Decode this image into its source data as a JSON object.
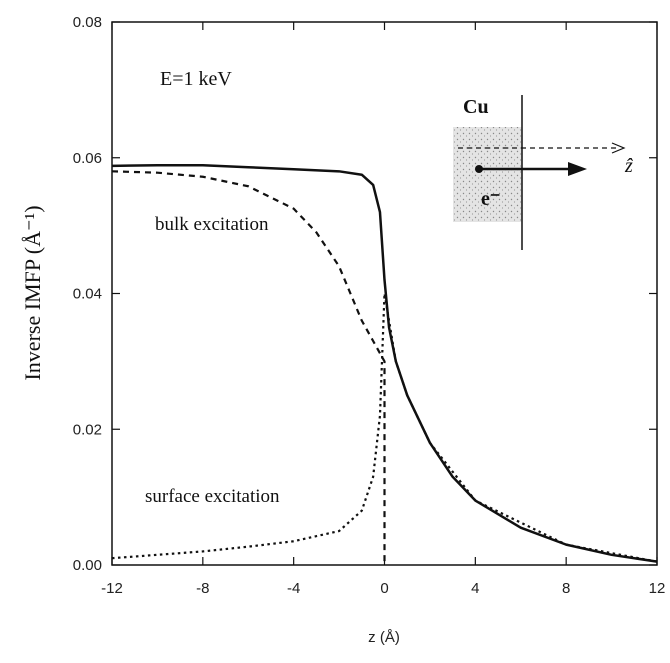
{
  "chart_data": {
    "type": "line",
    "xlabel": "z (Å)",
    "ylabel": "Inverse IMFP (Å⁻¹)",
    "annotations": [
      "E=1 keV",
      "bulk excitation",
      "surface excitation"
    ],
    "inset": {
      "material": "Cu",
      "particle": "e⁻",
      "axis": "ẑ"
    },
    "xlim": [
      -12,
      12
    ],
    "xticks": [
      -12,
      -8,
      -4,
      0,
      4,
      8,
      12
    ],
    "ylim": [
      0,
      0.08
    ],
    "yticks": [
      {
        "value": 0,
        "label": "0.00"
      },
      0.02,
      0.04,
      0.06,
      0.08
    ],
    "series": [
      {
        "style": "solid",
        "color": "#111111",
        "x": [
          -12,
          -10,
          -8,
          -6,
          -4,
          -2,
          -1,
          -0.5,
          -0.2,
          0,
          0.2,
          0.5,
          1,
          2,
          3,
          4,
          6,
          8,
          10,
          12
        ],
        "values": [
          0.0588,
          0.0589,
          0.0589,
          0.0586,
          0.0583,
          0.058,
          0.0575,
          0.056,
          0.052,
          0.042,
          0.035,
          0.03,
          0.025,
          0.018,
          0.013,
          0.0095,
          0.0055,
          0.003,
          0.0015,
          0.0005
        ]
      },
      {
        "style": "dashed",
        "color": "#111111",
        "x": [
          -12,
          -10,
          -8,
          -6,
          -4,
          -3,
          -2,
          -1.5,
          -1,
          -0.5,
          0,
          0
        ],
        "values": [
          0.058,
          0.0578,
          0.0572,
          0.0558,
          0.0525,
          0.049,
          0.044,
          0.04,
          0.036,
          0.033,
          0.03,
          0
        ]
      },
      {
        "style": "dotted",
        "color": "#111111",
        "x": [
          -12,
          -8,
          -6,
          -4,
          -2,
          -1,
          -0.5,
          -0.2,
          0,
          0.5,
          1,
          2,
          4,
          8,
          12
        ],
        "values": [
          0.001,
          0.002,
          0.0027,
          0.0035,
          0.005,
          0.008,
          0.013,
          0.022,
          0.04,
          0.03,
          0.025,
          0.018,
          0.0095,
          0.003,
          0.0005
        ]
      }
    ]
  }
}
